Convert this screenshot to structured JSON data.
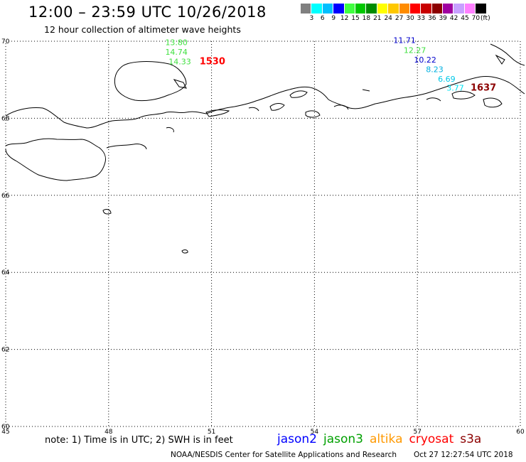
{
  "title": "12:00 – 23:59 UTC 10/26/2018",
  "subtitle": "12 hour collection of altimeter wave heights",
  "legend": {
    "colors": [
      "#808080",
      "#00ffff",
      "#00bfff",
      "#0000ff",
      "#40ff40",
      "#00c800",
      "#008c00",
      "#ffff00",
      "#ffc800",
      "#ff8c00",
      "#ff0000",
      "#c80000",
      "#8c0000",
      "#a000a0",
      "#c8a0ff",
      "#ff80ff",
      "#000000"
    ],
    "labels": [
      "3",
      "6",
      "9",
      "12",
      "15",
      "18",
      "21",
      "24",
      "27",
      "30",
      "33",
      "36",
      "39",
      "42",
      "45",
      "70",
      "(ft)"
    ]
  },
  "map": {
    "lon_range": [
      45,
      60
    ],
    "lat_range": [
      60,
      70
    ],
    "lon_ticks": [
      45,
      48,
      51,
      54,
      57,
      60
    ],
    "lat_ticks": [
      60,
      62,
      64,
      66,
      68,
      70
    ],
    "lon_tick_labels": [
      "45",
      "48",
      "51",
      "54",
      "57",
      "60"
    ],
    "lat_tick_labels": [
      "60",
      "62",
      "64",
      "66",
      "68",
      "70"
    ],
    "grid": "dotted",
    "swh_labels": [
      {
        "text": "13.80",
        "lon": 49.65,
        "lat": 69.9,
        "color": "#40e040"
      },
      {
        "text": "14.74",
        "lon": 49.65,
        "lat": 69.65,
        "color": "#40e040"
      },
      {
        "text": "14.33",
        "lon": 49.75,
        "lat": 69.4,
        "color": "#40e040"
      },
      {
        "text": "11.71",
        "lon": 56.3,
        "lat": 69.95,
        "color": "#0000cc"
      },
      {
        "text": "12.27",
        "lon": 56.6,
        "lat": 69.7,
        "color": "#40e040"
      },
      {
        "text": "10.22",
        "lon": 56.9,
        "lat": 69.45,
        "color": "#0000cc"
      },
      {
        "text": "8.23",
        "lon": 57.25,
        "lat": 69.2,
        "color": "#00b0e0"
      },
      {
        "text": "6.69",
        "lon": 57.6,
        "lat": 68.95,
        "color": "#00c8e8"
      },
      {
        "text": "3.77",
        "lon": 57.85,
        "lat": 68.72,
        "color": "#00e0f0"
      }
    ],
    "time_labels": [
      {
        "text": "1530",
        "lon": 50.65,
        "lat": 69.4,
        "color": "#ff0000"
      },
      {
        "text": "1637",
        "lon": 58.55,
        "lat": 68.72,
        "color": "#8c0000"
      }
    ]
  },
  "note": "note: 1) Time is in UTC; 2) SWH is in feet",
  "satellites": [
    {
      "name": "jason2",
      "color": "#0000ff"
    },
    {
      "name": "jason3",
      "color": "#00a000"
    },
    {
      "name": "altika",
      "color": "#ff9900"
    },
    {
      "name": "cryosat",
      "color": "#ff0000"
    },
    {
      "name": "s3a",
      "color": "#8c0000"
    }
  ],
  "credit": "NOAA/NESDIS Center for Satellite Applications and Research",
  "timestamp": "Oct 27 12:27:54 UTC 2018"
}
